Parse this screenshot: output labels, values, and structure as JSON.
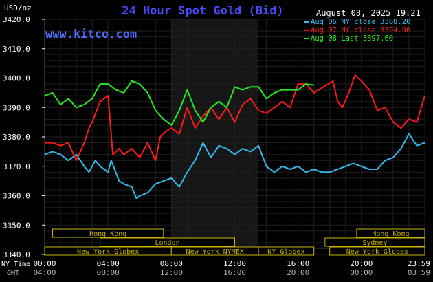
{
  "title": "24 Hour Spot Gold (Bid)",
  "brand": "www.kitco.com",
  "timestamp": "August 08, 2025 19:21",
  "unit_label": "USD/oz",
  "colors": {
    "background": "#000000",
    "title": "#4a4aff",
    "brand": "#4f6cff",
    "grid": "#1f1f1f",
    "session_bar": "#c8b400",
    "aug06": "#33bbee",
    "aug07": "#ff1a1a",
    "aug08": "#22ee22",
    "band": "#6a6a6a",
    "text": "#ffffff",
    "gmt_text": "#b0b0b0"
  },
  "legend": [
    {
      "label": "Aug 06 NY close 3368.20",
      "color": "#33bbee"
    },
    {
      "label": "Aug 07 NY close 3394.90",
      "color": "#ff1a1a"
    },
    {
      "label": "Aug 08 Last 3397.60",
      "color": "#22ee22"
    }
  ],
  "sessions": [
    {
      "label": "Hong Kong",
      "start": 0.5,
      "end": 7.5,
      "row": 0
    },
    {
      "label": "Hong Kong",
      "start": 19.7,
      "end": 24,
      "row": 0
    },
    {
      "label": "London",
      "start": 3.5,
      "end": 12.0,
      "row": 1
    },
    {
      "label": "Sydney",
      "start": 17.7,
      "end": 24,
      "row": 1
    },
    {
      "label": "New York Globex",
      "start": 0,
      "end": 8.0,
      "row": 2
    },
    {
      "label": "New York NYMEX",
      "start": 8.0,
      "end": 13.5,
      "row": 2
    },
    {
      "label": "NY Globex",
      "start": 13.5,
      "end": 17.0,
      "row": 2
    },
    {
      "label": "New York Globex",
      "start": 18.0,
      "end": 24,
      "row": 2
    }
  ],
  "x_axis": {
    "row1_label": "NY Time",
    "row2_label": "GMT",
    "ny_ticks": [
      "00:00",
      "04:00",
      "08:00",
      "12:00",
      "16:00",
      "20:00",
      "23:59"
    ],
    "gmt_ticks": [
      "04:00",
      "08:00",
      "12:00",
      "16:00",
      "20:00",
      "00:00",
      "03:59"
    ]
  },
  "chart_data": {
    "type": "line",
    "title": "24 Hour Spot Gold (Bid)",
    "ylabel": "USD/oz",
    "xlabel": "NY Time",
    "ylim": [
      3340,
      3420
    ],
    "xlim": [
      0,
      24
    ],
    "y_ticks": [
      3420,
      3410,
      3400,
      3390,
      3380,
      3370,
      3360,
      3350,
      3340
    ],
    "y_tick_labels": [
      "3420.0",
      "3410.0",
      "3400.0",
      "3390.0",
      "3380.0",
      "3370.0",
      "3360.0",
      "3350.0",
      "3340.0"
    ],
    "grid": true,
    "highlight_band": [
      8.0,
      13.5
    ],
    "series": [
      {
        "name": "Aug 06",
        "color": "#33bbee",
        "x": [
          0,
          0.5,
          1,
          1.5,
          2,
          2.5,
          2.8,
          3.2,
          3.5,
          4,
          4.2,
          4.7,
          5,
          5.5,
          5.8,
          6,
          6.5,
          7,
          7.5,
          8,
          8.5,
          9,
          9.5,
          10,
          10.5,
          11,
          11.5,
          12,
          12.5,
          13,
          13.5,
          14,
          14.5,
          15,
          15.5,
          16,
          16.5,
          17,
          17.5,
          18,
          18.5,
          19,
          19.5,
          20,
          20.5,
          21,
          21.5,
          22,
          22.5,
          23,
          23.5,
          24
        ],
        "y": [
          3374,
          3375,
          3374,
          3372,
          3374,
          3370,
          3368,
          3372,
          3370,
          3368,
          3372,
          3365,
          3364,
          3363,
          3359,
          3360,
          3361,
          3364,
          3365,
          3366,
          3363,
          3368,
          3372,
          3378,
          3373,
          3377,
          3376,
          3374,
          3376,
          3375,
          3377,
          3370,
          3368,
          3370,
          3369,
          3370,
          3368,
          3369,
          3368,
          3368,
          3369,
          3370,
          3371,
          3370,
          3369,
          3369,
          3372,
          3373,
          3376,
          3381,
          3377,
          3378
        ]
      },
      {
        "name": "Aug 07",
        "color": "#ff1a1a",
        "x": [
          0,
          0.5,
          1,
          1.5,
          2,
          2.5,
          2.8,
          3,
          3.5,
          4,
          4.3,
          4.7,
          5,
          5.5,
          6,
          6.5,
          7,
          7.3,
          7.7,
          8,
          8.5,
          9,
          9.5,
          10,
          10.5,
          11,
          11.5,
          12,
          12.5,
          13,
          13.5,
          14,
          14.5,
          15,
          15.5,
          16,
          16.5,
          17,
          18.2,
          18.5,
          18.8,
          19.2,
          19.6,
          20,
          20.5,
          21,
          21.5,
          22,
          22.5,
          23,
          23.5,
          24
        ],
        "y": [
          3378,
          3378,
          3377,
          3378,
          3372,
          3378,
          3383,
          3385,
          3392,
          3394,
          3374,
          3376,
          3374,
          3376,
          3373,
          3378,
          3372,
          3380,
          3382,
          3383,
          3381,
          3390,
          3383,
          3387,
          3390,
          3386,
          3390,
          3385,
          3391,
          3393,
          3389,
          3388,
          3390,
          3392,
          3390,
          3398,
          3398,
          3395,
          3399,
          3392,
          3390,
          3395,
          3401,
          3399,
          3396,
          3389,
          3390,
          3385,
          3383,
          3386,
          3385,
          3394
        ]
      },
      {
        "name": "Aug 08",
        "color": "#22ee22",
        "x": [
          0,
          0.5,
          1,
          1.5,
          2,
          2.5,
          3,
          3.5,
          4,
          4.5,
          5,
          5.5,
          6,
          6.5,
          7,
          7.5,
          8,
          8.5,
          9,
          9.5,
          10,
          10.5,
          11,
          11.5,
          12,
          12.5,
          13,
          13.5,
          14,
          14.5,
          15,
          15.5,
          16,
          16.5,
          17
        ],
        "y": [
          3394,
          3395,
          3391,
          3393,
          3390,
          3391,
          3393,
          3398,
          3398,
          3396,
          3395,
          3399,
          3398,
          3395,
          3389,
          3386,
          3384,
          3389,
          3396,
          3389,
          3385,
          3390,
          3392,
          3390,
          3397,
          3396,
          3397,
          3397,
          3393,
          3395,
          3396,
          3396,
          3396,
          3398,
          3397.6
        ]
      }
    ]
  }
}
